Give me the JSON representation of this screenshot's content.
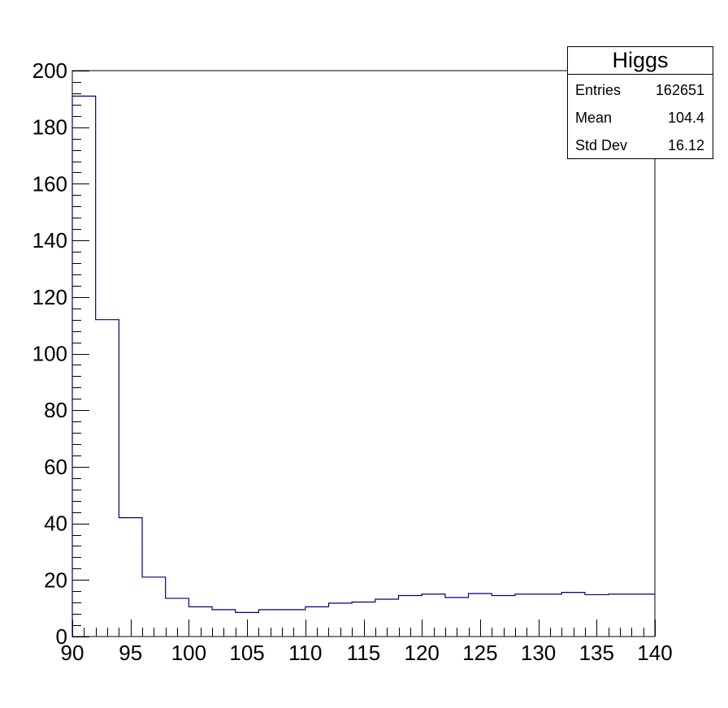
{
  "chart_data": {
    "type": "histogram",
    "title": "",
    "xlabel": "",
    "ylabel": "",
    "xlim": [
      90,
      140
    ],
    "ylim": [
      0,
      200
    ],
    "x_major_ticks": [
      90,
      95,
      100,
      105,
      110,
      115,
      120,
      125,
      130,
      135,
      140
    ],
    "x_tick_labels": [
      "90",
      "95",
      "100",
      "105",
      "110",
      "115",
      "120",
      "125",
      "130",
      "135",
      "140"
    ],
    "y_major_ticks": [
      0,
      20,
      40,
      60,
      80,
      100,
      120,
      140,
      160,
      180,
      200
    ],
    "y_tick_labels": [
      "0",
      "20",
      "40",
      "60",
      "80",
      "100",
      "120",
      "140",
      "160",
      "180",
      "200"
    ],
    "bin_edges": [
      90,
      92,
      94,
      96,
      98,
      100,
      102,
      104,
      106,
      108,
      110,
      112,
      114,
      116,
      118,
      120,
      122,
      124,
      126,
      128,
      130,
      132,
      134,
      136,
      138,
      140
    ],
    "values": [
      191,
      112,
      42,
      21,
      13.5,
      10.5,
      9.5,
      8.5,
      9.5,
      9.5,
      10.5,
      11.8,
      12.2,
      13.2,
      14.5,
      15,
      13.8,
      15.2,
      14.5,
      15,
      15,
      15.6,
      14.8,
      15,
      15
    ],
    "grid": false,
    "colors": {
      "line": "#000080",
      "axes": "#000000"
    }
  },
  "stats_box": {
    "title": "Higgs",
    "rows": [
      {
        "label": "Entries",
        "value": "162651"
      },
      {
        "label": "Mean",
        "value": "104.4"
      },
      {
        "label": "Std Dev",
        "value": "16.12"
      }
    ]
  }
}
